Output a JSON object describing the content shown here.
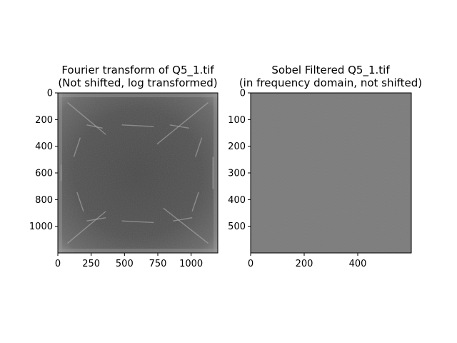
{
  "chart_data": [
    {
      "type": "heatmap",
      "title_line1": "Fourier transform of Q5_1.tif",
      "title_line2": "(Not shifted, log transformed)",
      "xlabel": "",
      "ylabel": "",
      "xlim": [
        0,
        1200
      ],
      "ylim": [
        1200,
        0
      ],
      "xticks": [
        0,
        250,
        500,
        750,
        1000
      ],
      "yticks": [
        0,
        200,
        400,
        600,
        800,
        1000
      ],
      "colormap": "gray",
      "background_color": "#4e4e4e",
      "edge_color": "#9a9a9a",
      "streak_color": "#b4b4b4"
    },
    {
      "type": "heatmap",
      "title_line1": "Sobel Filtered Q5_1.tif",
      "title_line2": "(in frequency domain, not shifted)",
      "xlabel": "",
      "ylabel": "",
      "xlim": [
        0,
        600
      ],
      "ylim": [
        600,
        0
      ],
      "xticks": [
        0,
        200,
        400
      ],
      "yticks": [
        0,
        100,
        200,
        300,
        400,
        500
      ],
      "colormap": "gray",
      "background_color": "#808080"
    }
  ]
}
